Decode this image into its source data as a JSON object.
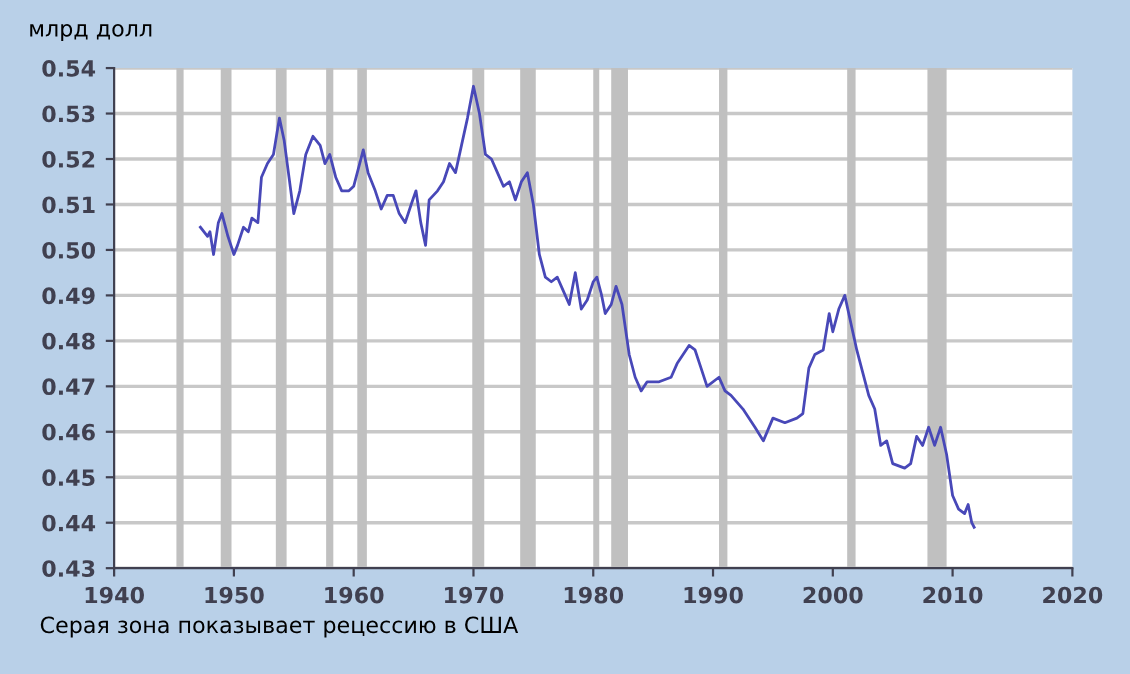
{
  "chart_data": {
    "type": "line",
    "ylabel": "млрд долл",
    "annotations": [
      "Серая зона показывает рецессию в США"
    ],
    "x": [
      1947.2,
      1947.8,
      1948.0,
      1948.3,
      1948.7,
      1949.0,
      1949.5,
      1950.0,
      1950.3,
      1950.8,
      1951.2,
      1951.5,
      1952.0,
      1952.3,
      1952.8,
      1953.3,
      1953.8,
      1954.2,
      1954.6,
      1955.0,
      1955.5,
      1956.0,
      1956.6,
      1957.2,
      1957.6,
      1958.0,
      1958.5,
      1959.0,
      1959.6,
      1960.0,
      1960.5,
      1960.8,
      1961.2,
      1961.8,
      1962.3,
      1962.8,
      1963.3,
      1963.8,
      1964.3,
      1964.8,
      1965.2,
      1965.6,
      1966.0,
      1966.3,
      1967.0,
      1967.5,
      1968.0,
      1968.5,
      1969.0,
      1969.5,
      1970.0,
      1970.5,
      1971.0,
      1971.5,
      1972.0,
      1972.5,
      1973.0,
      1973.5,
      1974.0,
      1974.5,
      1975.0,
      1975.5,
      1976.0,
      1976.5,
      1977.0,
      1977.5,
      1978.0,
      1978.5,
      1979.0,
      1979.5,
      1980.0,
      1980.3,
      1980.7,
      1981.0,
      1981.5,
      1981.9,
      1982.4,
      1983.0,
      1983.5,
      1984.0,
      1984.5,
      1985.5,
      1986.5,
      1987.0,
      1988.0,
      1988.5,
      1989.0,
      1989.5,
      1990.5,
      1991.0,
      1991.5,
      1992.5,
      1993.5,
      1994.2,
      1995.0,
      1996.0,
      1997.0,
      1997.5,
      1998.0,
      1998.5,
      1999.2,
      1999.7,
      2000.0,
      2000.5,
      2001.0,
      2001.5,
      2002.0,
      2002.5,
      2003.0,
      2003.5,
      2004.0,
      2004.5,
      2005.0,
      2006.0,
      2006.5,
      2007.0,
      2007.5,
      2008.0,
      2008.5,
      2009.0,
      2009.5,
      2010.0,
      2010.5,
      2011.0,
      2011.3,
      2011.6,
      2011.8
    ],
    "series": [
      {
        "color": "#4848b8",
        "values": [
          0.505,
          0.503,
          0.504,
          0.499,
          0.506,
          0.508,
          0.503,
          0.499,
          0.501,
          0.505,
          0.504,
          0.507,
          0.506,
          0.516,
          0.519,
          0.521,
          0.529,
          0.524,
          0.516,
          0.508,
          0.513,
          0.521,
          0.525,
          0.523,
          0.519,
          0.521,
          0.516,
          0.513,
          0.513,
          0.514,
          0.519,
          0.522,
          0.517,
          0.513,
          0.509,
          0.512,
          0.512,
          0.508,
          0.506,
          0.51,
          0.513,
          0.506,
          0.501,
          0.511,
          0.513,
          0.515,
          0.519,
          0.517,
          0.523,
          0.529,
          0.536,
          0.53,
          0.521,
          0.52,
          0.517,
          0.514,
          0.515,
          0.511,
          0.515,
          0.517,
          0.51,
          0.499,
          0.494,
          0.493,
          0.494,
          0.491,
          0.488,
          0.495,
          0.487,
          0.489,
          0.493,
          0.494,
          0.49,
          0.486,
          0.488,
          0.492,
          0.488,
          0.477,
          0.472,
          0.469,
          0.471,
          0.471,
          0.472,
          0.475,
          0.479,
          0.478,
          0.474,
          0.47,
          0.472,
          0.469,
          0.468,
          0.465,
          0.461,
          0.458,
          0.463,
          0.462,
          0.463,
          0.464,
          0.474,
          0.477,
          0.478,
          0.486,
          0.482,
          0.487,
          0.49,
          0.484,
          0.478,
          0.473,
          0.468,
          0.465,
          0.457,
          0.458,
          0.453,
          0.452,
          0.453,
          0.459,
          0.457,
          0.461,
          0.457,
          0.461,
          0.455,
          0.446,
          0.443,
          0.442,
          0.444,
          0.44,
          0.439
        ]
      }
    ],
    "xlim": [
      1940,
      2020
    ],
    "xticks": [
      1940,
      1950,
      1960,
      1970,
      1980,
      1990,
      2000,
      2010,
      2020
    ],
    "ylim": [
      0.43,
      0.54
    ],
    "yticks": [
      {
        "value": 0.43,
        "label": "0.43"
      },
      {
        "value": 0.44,
        "label": "0.44"
      },
      {
        "value": 0.45,
        "label": "0.45"
      },
      {
        "value": 0.46,
        "label": "0.46"
      },
      {
        "value": 0.47,
        "label": "0.47"
      },
      {
        "value": 0.48,
        "label": "0.48"
      },
      {
        "value": 0.49,
        "label": "0.49"
      },
      {
        "value": 0.5,
        "label": "0.50"
      },
      {
        "value": 0.51,
        "label": "0.51"
      },
      {
        "value": 0.52,
        "label": "0.52"
      },
      {
        "value": 0.53,
        "label": "0.53"
      },
      {
        "value": 0.54,
        "label": "0.54"
      }
    ],
    "grid": "y",
    "bands": [
      {
        "axis": "x",
        "from": 1945.2,
        "to": 1945.8,
        "color": "#c0c0c0"
      },
      {
        "axis": "x",
        "from": 1948.9,
        "to": 1949.8,
        "color": "#c0c0c0"
      },
      {
        "axis": "x",
        "from": 1953.5,
        "to": 1954.4,
        "color": "#c0c0c0"
      },
      {
        "axis": "x",
        "from": 1957.7,
        "to": 1958.3,
        "color": "#c0c0c0"
      },
      {
        "axis": "x",
        "from": 1960.3,
        "to": 1961.1,
        "color": "#c0c0c0"
      },
      {
        "axis": "x",
        "from": 1969.9,
        "to": 1970.9,
        "color": "#c0c0c0"
      },
      {
        "axis": "x",
        "from": 1973.9,
        "to": 1975.2,
        "color": "#c0c0c0"
      },
      {
        "axis": "x",
        "from": 1980.0,
        "to": 1980.5,
        "color": "#c0c0c0"
      },
      {
        "axis": "x",
        "from": 1981.5,
        "to": 1982.9,
        "color": "#c0c0c0"
      },
      {
        "axis": "x",
        "from": 1990.5,
        "to": 1991.2,
        "color": "#c0c0c0"
      },
      {
        "axis": "x",
        "from": 2001.2,
        "to": 2001.9,
        "color": "#c0c0c0"
      },
      {
        "axis": "x",
        "from": 2007.9,
        "to": 2009.5,
        "color": "#c0c0c0"
      }
    ]
  }
}
